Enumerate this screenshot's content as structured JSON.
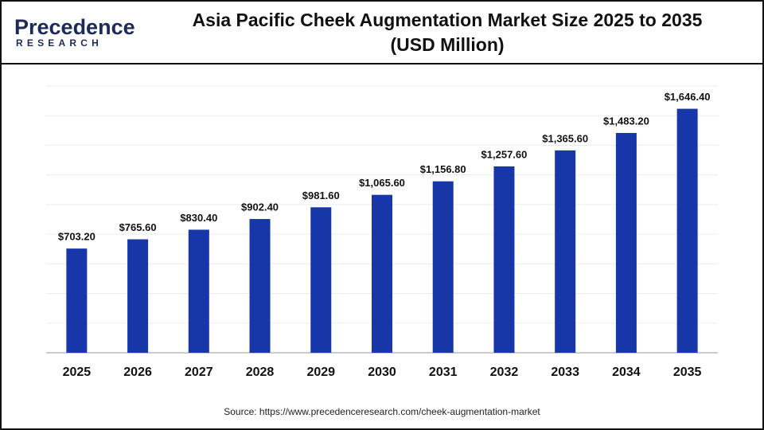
{
  "logo": {
    "name": "Precedence",
    "tagline": "RESEARCH"
  },
  "chart_data": {
    "type": "bar",
    "title": "Asia Pacific Cheek Augmentation Market Size 2025 to 2035",
    "subtitle": "(USD Million)",
    "categories": [
      "2025",
      "2026",
      "2027",
      "2028",
      "2029",
      "2030",
      "2031",
      "2032",
      "2033",
      "2034",
      "2035"
    ],
    "values": [
      703.2,
      765.6,
      830.4,
      902.4,
      981.6,
      1065.6,
      1156.8,
      1257.6,
      1365.6,
      1483.2,
      1646.4
    ],
    "value_labels": [
      "$703.20",
      "$765.60",
      "$830.40",
      "$902.40",
      "$981.60",
      "$1,065.60",
      "$1,156.80",
      "$1,257.60",
      "$1,365.60",
      "$1,483.20",
      "$1,646.40"
    ],
    "color": "#1737a8",
    "ylim": [
      0,
      1800
    ],
    "yticks": [
      0,
      200,
      400,
      600,
      800,
      1000,
      1200,
      1400,
      1600,
      1800
    ],
    "grid": true,
    "source": "Source: https://www.precedenceresearch.com/cheek-augmentation-market"
  }
}
